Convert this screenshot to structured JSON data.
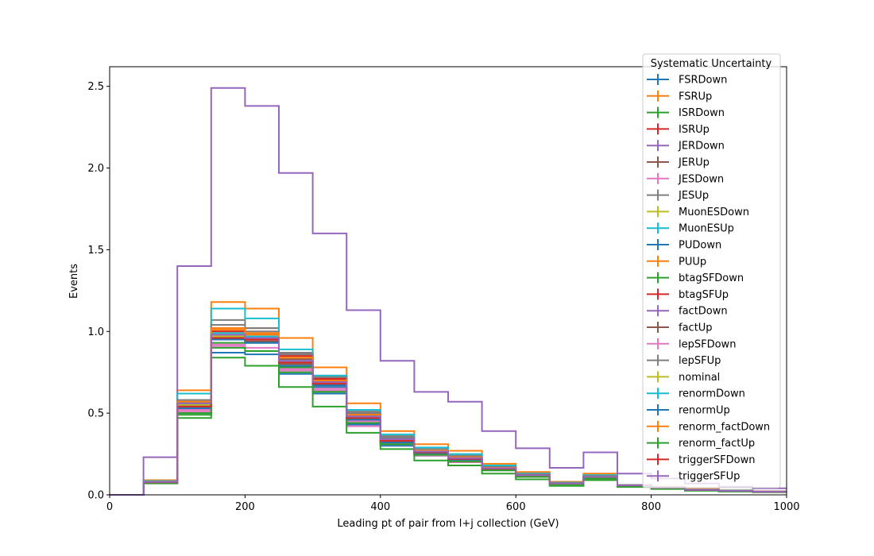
{
  "chart_data": {
    "type": "line",
    "title": "",
    "xlabel": "Leading pt of pair from l+j collection (GeV)",
    "ylabel": "Events",
    "xlim": [
      0,
      1000
    ],
    "ylim": [
      0,
      2.62
    ],
    "x_ticks": [
      0,
      200,
      400,
      600,
      800,
      1000
    ],
    "y_ticks": [
      0.0,
      0.5,
      1.0,
      1.5,
      2.0,
      2.5
    ],
    "x_tick_labels": [
      "0",
      "200",
      "400",
      "600",
      "800",
      "1000"
    ],
    "y_tick_labels": [
      "0.0",
      "0.5",
      "1.0",
      "1.5",
      "2.0",
      "2.5"
    ],
    "grid": false,
    "legend": {
      "title": "Systematic Uncertainty",
      "placement": "top-right"
    },
    "bin_edges": [
      0,
      50,
      100,
      150,
      200,
      250,
      300,
      350,
      400,
      450,
      500,
      550,
      600,
      650,
      700,
      750,
      800,
      850,
      900,
      950,
      1000
    ],
    "series": [
      {
        "name": "FSRDown",
        "color": "#1f77b4",
        "values": [
          0,
          0.075,
          0.5,
          0.87,
          0.86,
          0.74,
          0.62,
          0.43,
          0.3,
          0.24,
          0.2,
          0.15,
          0.11,
          0.065,
          0.1,
          0.055,
          0.04,
          0.028,
          0.022,
          0.018
        ]
      },
      {
        "name": "FSRUp",
        "color": "#ff7f0e",
        "values": [
          0,
          0.09,
          0.64,
          1.18,
          1.14,
          0.96,
          0.78,
          0.56,
          0.39,
          0.31,
          0.27,
          0.19,
          0.14,
          0.08,
          0.13,
          0.06,
          0.05,
          0.035,
          0.028,
          0.022
        ]
      },
      {
        "name": "ISRDown",
        "color": "#2ca02c",
        "values": [
          0,
          0.072,
          0.49,
          0.93,
          0.93,
          0.78,
          0.64,
          0.44,
          0.31,
          0.24,
          0.2,
          0.15,
          0.11,
          0.065,
          0.1,
          0.055,
          0.04,
          0.028,
          0.022,
          0.018
        ]
      },
      {
        "name": "ISRUp",
        "color": "#d62728",
        "values": [
          0,
          0.08,
          0.56,
          1.02,
          1.02,
          0.86,
          0.72,
          0.5,
          0.35,
          0.27,
          0.23,
          0.17,
          0.12,
          0.07,
          0.115,
          0.06,
          0.045,
          0.03,
          0.025,
          0.02
        ]
      },
      {
        "name": "JERDown",
        "color": "#9467bd",
        "values": [
          0,
          0.23,
          1.4,
          2.49,
          2.38,
          1.97,
          1.6,
          1.13,
          0.82,
          0.63,
          0.57,
          0.39,
          0.285,
          0.165,
          0.26,
          0.13,
          0.1,
          0.07,
          0.05,
          0.04
        ]
      },
      {
        "name": "JERUp",
        "color": "#8c564b",
        "values": [
          0,
          0.078,
          0.55,
          0.97,
          0.97,
          0.83,
          0.69,
          0.48,
          0.34,
          0.26,
          0.22,
          0.16,
          0.12,
          0.07,
          0.11,
          0.058,
          0.043,
          0.03,
          0.024,
          0.019
        ]
      },
      {
        "name": "JESDown",
        "color": "#e377c2",
        "values": [
          0,
          0.076,
          0.52,
          0.91,
          0.88,
          0.76,
          0.64,
          0.42,
          0.31,
          0.24,
          0.2,
          0.15,
          0.11,
          0.065,
          0.1,
          0.055,
          0.04,
          0.028,
          0.022,
          0.018
        ]
      },
      {
        "name": "JESUp",
        "color": "#7f7f7f",
        "values": [
          0,
          0.082,
          0.58,
          1.07,
          1.02,
          0.87,
          0.73,
          0.51,
          0.36,
          0.28,
          0.24,
          0.17,
          0.13,
          0.075,
          0.12,
          0.06,
          0.046,
          0.032,
          0.026,
          0.02
        ]
      },
      {
        "name": "MuonESDown",
        "color": "#bcbd22",
        "values": [
          0,
          0.079,
          0.56,
          1.0,
          0.95,
          0.81,
          0.68,
          0.47,
          0.33,
          0.26,
          0.22,
          0.16,
          0.12,
          0.07,
          0.11,
          0.058,
          0.043,
          0.03,
          0.024,
          0.019
        ]
      },
      {
        "name": "MuonESUp",
        "color": "#17becf",
        "values": [
          0,
          0.085,
          0.62,
          1.14,
          1.08,
          0.89,
          0.73,
          0.52,
          0.37,
          0.29,
          0.25,
          0.18,
          0.13,
          0.075,
          0.12,
          0.06,
          0.046,
          0.032,
          0.026,
          0.02
        ]
      },
      {
        "name": "PUDown",
        "color": "#1f77b4",
        "values": [
          0,
          0.076,
          0.53,
          0.95,
          0.93,
          0.79,
          0.66,
          0.46,
          0.32,
          0.25,
          0.21,
          0.155,
          0.115,
          0.068,
          0.105,
          0.056,
          0.042,
          0.029,
          0.023,
          0.018
        ]
      },
      {
        "name": "PUUp",
        "color": "#ff7f0e",
        "values": [
          0,
          0.08,
          0.57,
          1.01,
          0.98,
          0.84,
          0.7,
          0.49,
          0.34,
          0.27,
          0.23,
          0.165,
          0.12,
          0.07,
          0.11,
          0.058,
          0.044,
          0.03,
          0.024,
          0.019
        ]
      },
      {
        "name": "btagSFDown",
        "color": "#2ca02c",
        "values": [
          0,
          0.07,
          0.47,
          0.84,
          0.79,
          0.66,
          0.54,
          0.38,
          0.28,
          0.21,
          0.18,
          0.13,
          0.095,
          0.055,
          0.09,
          0.048,
          0.036,
          0.025,
          0.02,
          0.016
        ]
      },
      {
        "name": "btagSFUp",
        "color": "#d62728",
        "values": [
          0,
          0.079,
          0.56,
          1.0,
          0.99,
          0.85,
          0.71,
          0.49,
          0.34,
          0.27,
          0.23,
          0.165,
          0.12,
          0.07,
          0.11,
          0.058,
          0.044,
          0.03,
          0.024,
          0.019
        ]
      },
      {
        "name": "factDown",
        "color": "#9467bd",
        "values": [
          0,
          0.077,
          0.54,
          0.98,
          0.96,
          0.82,
          0.68,
          0.47,
          0.33,
          0.26,
          0.22,
          0.16,
          0.12,
          0.07,
          0.11,
          0.058,
          0.043,
          0.03,
          0.024,
          0.019
        ]
      },
      {
        "name": "factUp",
        "color": "#8c564b",
        "values": [
          0,
          0.078,
          0.55,
          0.96,
          0.94,
          0.8,
          0.67,
          0.46,
          0.33,
          0.26,
          0.22,
          0.16,
          0.12,
          0.07,
          0.11,
          0.058,
          0.043,
          0.03,
          0.024,
          0.019
        ]
      },
      {
        "name": "lepSFDown",
        "color": "#e377c2",
        "values": [
          0,
          0.075,
          0.51,
          0.92,
          0.9,
          0.77,
          0.65,
          0.45,
          0.32,
          0.25,
          0.21,
          0.155,
          0.115,
          0.067,
          0.105,
          0.056,
          0.042,
          0.029,
          0.023,
          0.018
        ]
      },
      {
        "name": "lepSFUp",
        "color": "#7f7f7f",
        "values": [
          0,
          0.081,
          0.58,
          1.04,
          1.0,
          0.86,
          0.72,
          0.5,
          0.35,
          0.27,
          0.23,
          0.17,
          0.125,
          0.072,
          0.115,
          0.06,
          0.045,
          0.031,
          0.025,
          0.02
        ]
      },
      {
        "name": "nominal",
        "color": "#bcbd22",
        "values": [
          0,
          0.078,
          0.55,
          0.97,
          0.95,
          0.81,
          0.68,
          0.47,
          0.33,
          0.26,
          0.22,
          0.16,
          0.12,
          0.07,
          0.11,
          0.058,
          0.043,
          0.03,
          0.024,
          0.019
        ]
      },
      {
        "name": "renormDown",
        "color": "#17becf",
        "values": [
          0,
          0.079,
          0.56,
          0.99,
          0.97,
          0.82,
          0.69,
          0.48,
          0.34,
          0.265,
          0.225,
          0.163,
          0.12,
          0.07,
          0.11,
          0.058,
          0.044,
          0.03,
          0.024,
          0.019
        ]
      },
      {
        "name": "renormUp",
        "color": "#1f77b4",
        "values": [
          0,
          0.077,
          0.54,
          0.95,
          0.93,
          0.79,
          0.67,
          0.46,
          0.32,
          0.255,
          0.215,
          0.157,
          0.117,
          0.068,
          0.106,
          0.057,
          0.042,
          0.029,
          0.023,
          0.018
        ]
      },
      {
        "name": "renorm_factDown",
        "color": "#ff7f0e",
        "values": [
          0,
          0.08,
          0.57,
          1.02,
          0.99,
          0.84,
          0.7,
          0.49,
          0.34,
          0.27,
          0.23,
          0.165,
          0.12,
          0.07,
          0.11,
          0.058,
          0.044,
          0.03,
          0.024,
          0.019
        ]
      },
      {
        "name": "renorm_factUp",
        "color": "#2ca02c",
        "values": [
          0,
          0.074,
          0.5,
          0.9,
          0.88,
          0.75,
          0.63,
          0.44,
          0.31,
          0.245,
          0.205,
          0.15,
          0.11,
          0.065,
          0.1,
          0.055,
          0.04,
          0.028,
          0.022,
          0.018
        ]
      },
      {
        "name": "triggerSFDown",
        "color": "#d62728",
        "values": [
          0,
          0.077,
          0.54,
          0.96,
          0.95,
          0.81,
          0.68,
          0.47,
          0.33,
          0.26,
          0.22,
          0.16,
          0.12,
          0.07,
          0.11,
          0.058,
          0.043,
          0.03,
          0.024,
          0.019
        ]
      },
      {
        "name": "triggerSFUp",
        "color": "#9467bd",
        "values": [
          0,
          0.079,
          0.56,
          0.98,
          0.96,
          0.82,
          0.69,
          0.48,
          0.34,
          0.265,
          0.225,
          0.163,
          0.12,
          0.07,
          0.11,
          0.058,
          0.044,
          0.03,
          0.024,
          0.019
        ]
      }
    ]
  }
}
